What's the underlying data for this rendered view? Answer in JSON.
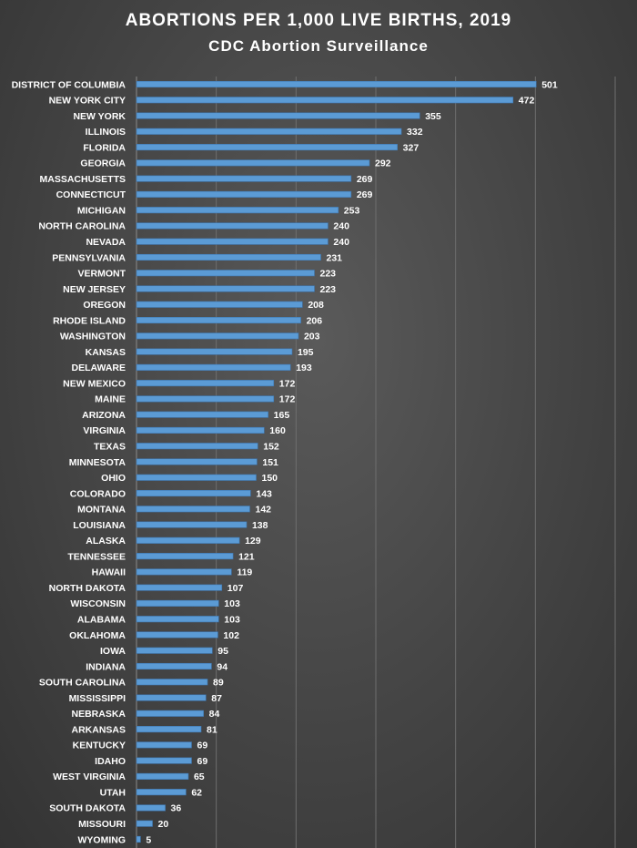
{
  "chart_data": {
    "type": "bar",
    "orientation": "horizontal",
    "title": "ABORTIONS PER 1,000 LIVE BIRTHS, 2019",
    "subtitle": "CDC Abortion Surveillance",
    "xlim": [
      0,
      600
    ],
    "grid": true,
    "legend": "none",
    "bar_color": "#5b9bd5",
    "categories": [
      "DISTRICT OF COLUMBIA",
      "NEW YORK CITY",
      "NEW YORK",
      "ILLINOIS",
      "FLORIDA",
      "GEORGIA",
      "MASSACHUSETTS",
      "CONNECTICUT",
      "MICHIGAN",
      "NORTH CAROLINA",
      "NEVADA",
      "PENNSYLVANIA",
      "VERMONT",
      "NEW JERSEY",
      "OREGON",
      "RHODE ISLAND",
      "WASHINGTON",
      "KANSAS",
      "DELAWARE",
      "NEW MEXICO",
      "MAINE",
      "ARIZONA",
      "VIRGINIA",
      "TEXAS",
      "MINNESOTA",
      "OHIO",
      "COLORADO",
      "MONTANA",
      "LOUISIANA",
      "ALASKA",
      "TENNESSEE",
      "HAWAII",
      "NORTH DAKOTA",
      "WISCONSIN",
      "ALABAMA",
      "OKLAHOMA",
      "IOWA",
      "INDIANA",
      "SOUTH CAROLINA",
      "MISSISSIPPI",
      "NEBRASKA",
      "ARKANSAS",
      "KENTUCKY",
      "IDAHO",
      "WEST VIRGINIA",
      "UTAH",
      "SOUTH DAKOTA",
      "MISSOURI",
      "WYOMING"
    ],
    "values": [
      501,
      472,
      355,
      332,
      327,
      292,
      269,
      269,
      253,
      240,
      240,
      231,
      223,
      223,
      208,
      206,
      203,
      195,
      193,
      172,
      172,
      165,
      160,
      152,
      151,
      150,
      143,
      142,
      138,
      129,
      121,
      119,
      107,
      103,
      103,
      102,
      95,
      94,
      89,
      87,
      84,
      81,
      69,
      69,
      65,
      62,
      36,
      20,
      5
    ]
  }
}
